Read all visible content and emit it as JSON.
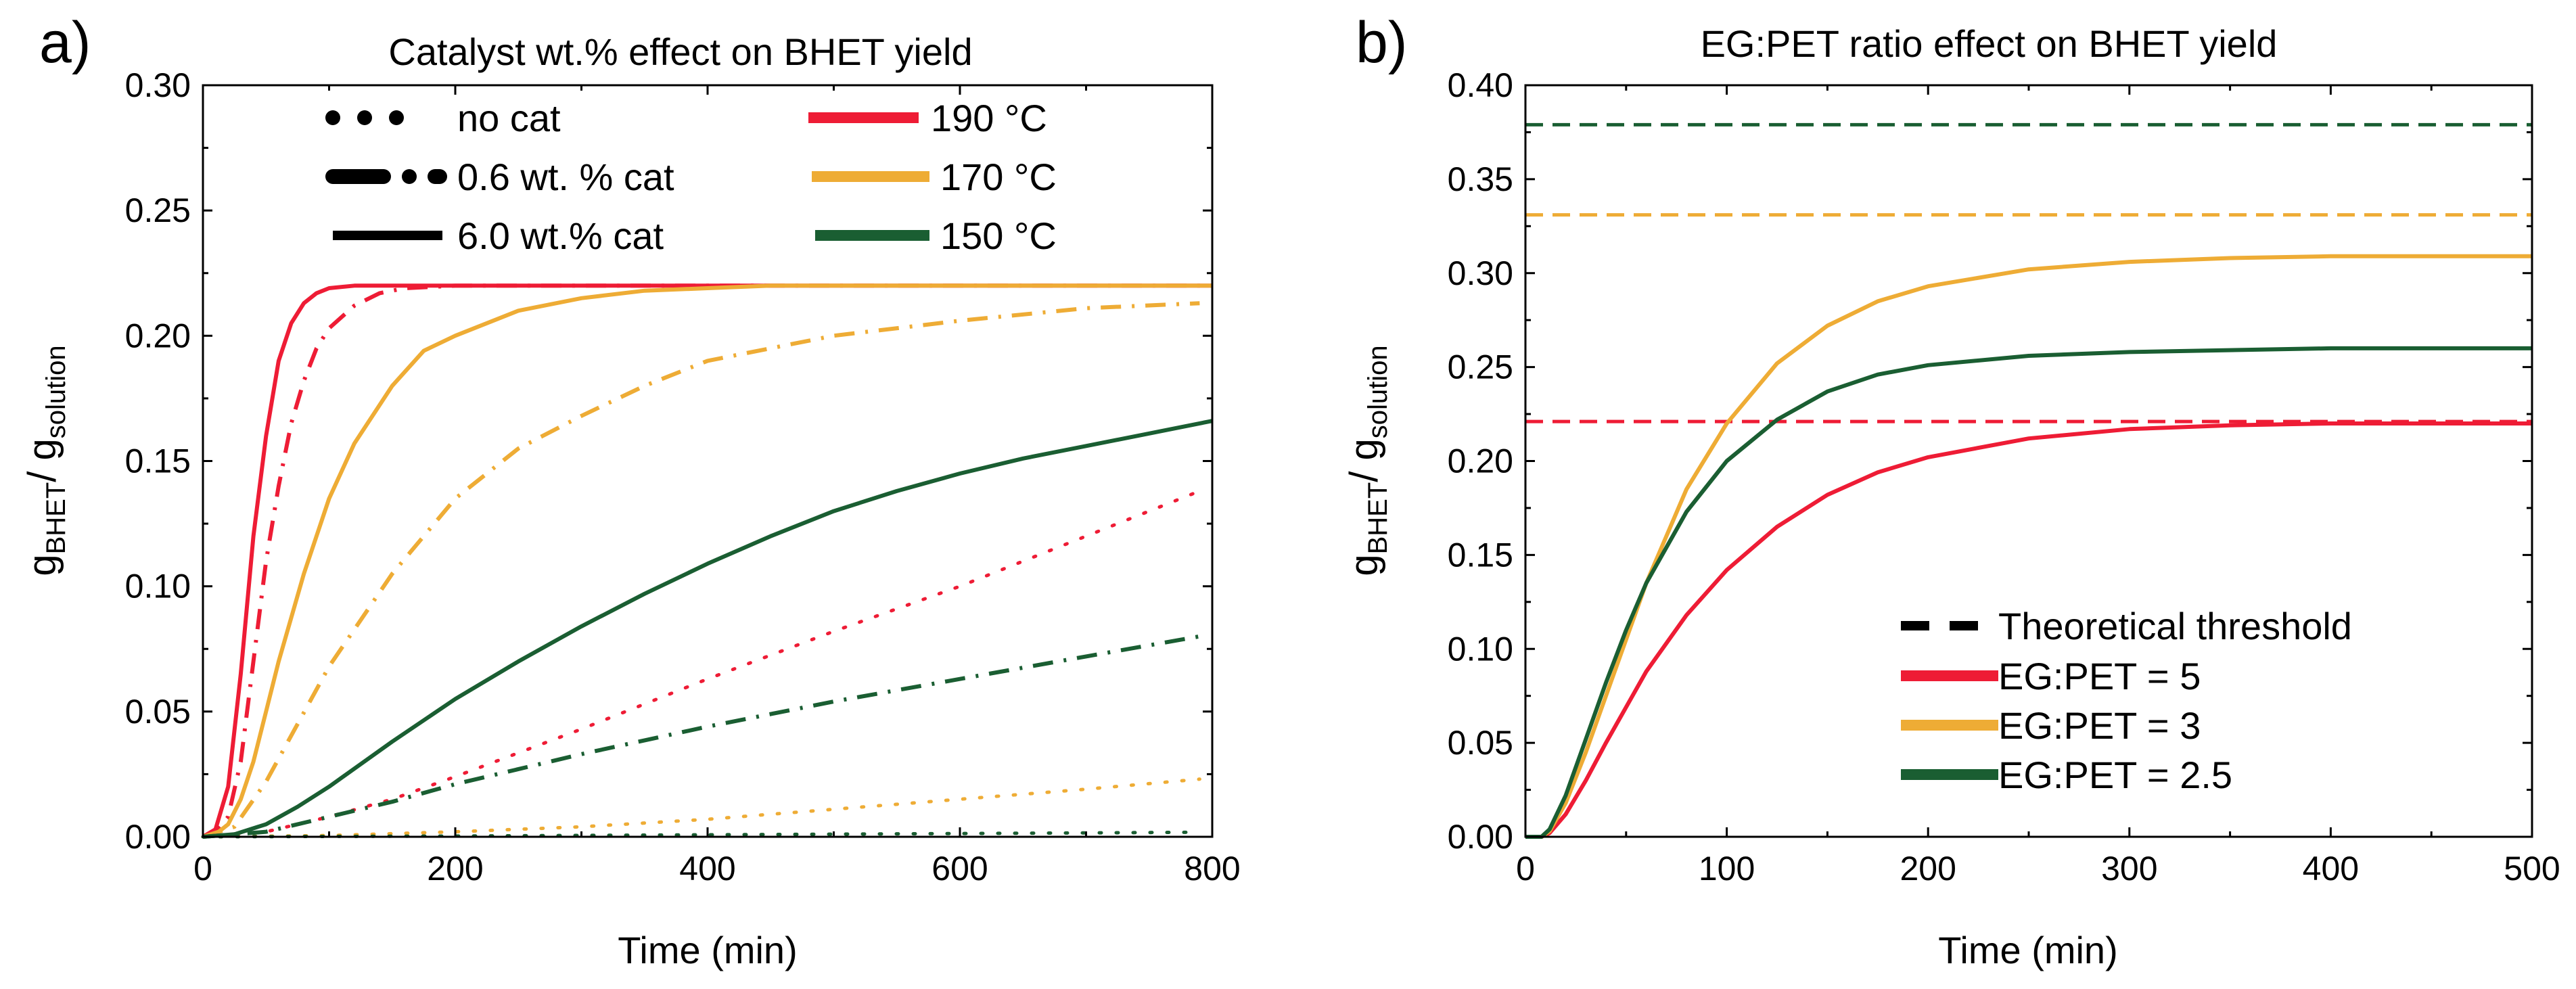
{
  "colors": {
    "red": "#ee1c35",
    "orange": "#eeac35",
    "green": "#1a5e32",
    "black": "#000000"
  },
  "chart_data": [
    {
      "panel_label": "a)",
      "type": "line",
      "title": "Catalyst wt.% effect on BHET yield",
      "xlabel": "Time (min)",
      "ylabel": {
        "main": "g",
        "sub": "BHET",
        "sep": "/ g",
        "sub2": "solution"
      },
      "xlim": [
        0,
        800
      ],
      "ylim": [
        0,
        0.3
      ],
      "xticks": [
        0,
        200,
        400,
        600,
        800
      ],
      "xtick_labels": [
        "0",
        "200",
        "400",
        "600",
        "800"
      ],
      "yticks": [
        0,
        0.05,
        0.1,
        0.15,
        0.2,
        0.25,
        0.3
      ],
      "ytick_labels": [
        "0.00",
        "0.05",
        "0.10",
        "0.15",
        "0.20",
        "0.25",
        "0.30"
      ],
      "legend": [
        {
          "label": "no cat",
          "color": "black",
          "style": "dot"
        },
        {
          "label": "0.6 wt. % cat",
          "color": "black",
          "style": "dashdot"
        },
        {
          "label": "6.0 wt.% cat",
          "color": "black",
          "style": "solid"
        },
        {
          "label": "190 °C",
          "color": "red",
          "style": "solid"
        },
        {
          "label": "170 °C",
          "color": "orange",
          "style": "solid"
        },
        {
          "label": "150 °C",
          "color": "green",
          "style": "solid"
        }
      ],
      "series": [
        {
          "name": "190 °C, 6.0 wt.% cat",
          "color": "red",
          "style": "solid",
          "x": [
            0,
            10,
            20,
            30,
            40,
            50,
            60,
            70,
            80,
            90,
            100,
            120,
            150,
            200,
            300,
            500,
            800
          ],
          "y": [
            0,
            0.003,
            0.02,
            0.065,
            0.12,
            0.16,
            0.19,
            0.205,
            0.213,
            0.217,
            0.219,
            0.22,
            0.22,
            0.22,
            0.22,
            0.22,
            0.22
          ]
        },
        {
          "name": "190 °C, 0.6 wt.% cat",
          "color": "red",
          "style": "dashdot",
          "x": [
            0,
            10,
            20,
            30,
            40,
            50,
            60,
            70,
            80,
            90,
            100,
            120,
            140,
            160,
            200,
            300,
            800
          ],
          "y": [
            0,
            0.002,
            0.008,
            0.03,
            0.07,
            0.11,
            0.14,
            0.165,
            0.182,
            0.195,
            0.203,
            0.212,
            0.217,
            0.219,
            0.22,
            0.22,
            0.22
          ]
        },
        {
          "name": "190 °C, no cat",
          "color": "red",
          "style": "dot",
          "x": [
            0,
            50,
            100,
            150,
            200,
            300,
            400,
            500,
            600,
            700,
            790
          ],
          "y": [
            0,
            0.002,
            0.008,
            0.015,
            0.024,
            0.043,
            0.063,
            0.082,
            0.1,
            0.12,
            0.138
          ]
        },
        {
          "name": "170 °C, 6.0 wt.% cat",
          "color": "orange",
          "style": "solid",
          "x": [
            0,
            10,
            20,
            30,
            40,
            50,
            60,
            80,
            100,
            120,
            150,
            175,
            200,
            250,
            300,
            350,
            400,
            450,
            500,
            800
          ],
          "y": [
            0,
            0.001,
            0.005,
            0.015,
            0.03,
            0.05,
            0.07,
            0.105,
            0.135,
            0.157,
            0.18,
            0.194,
            0.2,
            0.21,
            0.215,
            0.218,
            0.219,
            0.22,
            0.22,
            0.22
          ]
        },
        {
          "name": "170 °C, 0.6 wt.% cat",
          "color": "orange",
          "style": "dashdot",
          "x": [
            0,
            25,
            50,
            75,
            100,
            150,
            200,
            250,
            300,
            350,
            400,
            500,
            600,
            700,
            790
          ],
          "y": [
            0,
            0.004,
            0.022,
            0.045,
            0.068,
            0.105,
            0.135,
            0.155,
            0.168,
            0.18,
            0.19,
            0.2,
            0.206,
            0.211,
            0.213
          ]
        },
        {
          "name": "170 °C, no cat",
          "color": "orange",
          "style": "dot",
          "x": [
            0,
            100,
            200,
            300,
            400,
            500,
            600,
            700,
            790
          ],
          "y": [
            0,
            0.0005,
            0.002,
            0.004,
            0.007,
            0.011,
            0.015,
            0.019,
            0.023
          ]
        },
        {
          "name": "150 °C, 6.0 wt.% cat",
          "color": "green",
          "style": "solid",
          "x": [
            0,
            25,
            50,
            75,
            100,
            150,
            200,
            250,
            300,
            350,
            400,
            450,
            500,
            550,
            600,
            650,
            700,
            750,
            800
          ],
          "y": [
            0,
            0.001,
            0.005,
            0.012,
            0.02,
            0.038,
            0.055,
            0.07,
            0.084,
            0.097,
            0.109,
            0.12,
            0.13,
            0.138,
            0.145,
            0.151,
            0.156,
            0.161,
            0.166
          ]
        },
        {
          "name": "150 °C, 0.6 wt.% cat",
          "color": "green",
          "style": "dashdot",
          "x": [
            0,
            50,
            100,
            150,
            200,
            300,
            400,
            500,
            600,
            700,
            790
          ],
          "y": [
            0,
            0.002,
            0.008,
            0.014,
            0.021,
            0.033,
            0.044,
            0.054,
            0.063,
            0.072,
            0.08
          ]
        },
        {
          "name": "150 °C, no cat",
          "color": "green",
          "style": "dot",
          "x": [
            0,
            200,
            400,
            600,
            790
          ],
          "y": [
            0,
            0.0003,
            0.0008,
            0.0013,
            0.0018
          ]
        }
      ]
    },
    {
      "panel_label": "b)",
      "type": "line",
      "title": "EG:PET ratio effect on BHET yield",
      "xlabel": "Time (min)",
      "ylabel": {
        "main": "g",
        "sub": "BHET",
        "sep": "/ g",
        "sub2": "solution"
      },
      "xlim": [
        0,
        500
      ],
      "ylim": [
        0,
        0.4
      ],
      "xticks": [
        0,
        100,
        200,
        300,
        400,
        500
      ],
      "xtick_labels": [
        "0",
        "100",
        "200",
        "300",
        "400",
        "500"
      ],
      "yticks": [
        0,
        0.05,
        0.1,
        0.15,
        0.2,
        0.25,
        0.3,
        0.35,
        0.4
      ],
      "ytick_labels": [
        "0.00",
        "0.05",
        "0.10",
        "0.15",
        "0.20",
        "0.25",
        "0.30",
        "0.35",
        "0.40"
      ],
      "legend": [
        {
          "label": "Theoretical threshold",
          "color": "black",
          "style": "dash"
        },
        {
          "label": "EG:PET = 5",
          "color": "red",
          "style": "solid"
        },
        {
          "label": "EG:PET = 3",
          "color": "orange",
          "style": "solid"
        },
        {
          "label": "EG:PET = 2.5",
          "color": "green",
          "style": "solid"
        }
      ],
      "thresholds": [
        {
          "name": "EG:PET = 5 threshold",
          "color": "red",
          "value": 0.221
        },
        {
          "name": "EG:PET = 3 threshold",
          "color": "orange",
          "value": 0.331
        },
        {
          "name": "EG:PET = 2.5 threshold",
          "color": "green",
          "value": 0.379
        }
      ],
      "series": [
        {
          "name": "EG:PET = 5",
          "color": "red",
          "style": "solid",
          "x": [
            0,
            8,
            12,
            20,
            30,
            40,
            60,
            80,
            100,
            125,
            150,
            175,
            200,
            250,
            300,
            350,
            400,
            450,
            500
          ],
          "y": [
            0,
            0,
            0.002,
            0.012,
            0.03,
            0.05,
            0.088,
            0.118,
            0.142,
            0.165,
            0.182,
            0.194,
            0.202,
            0.212,
            0.217,
            0.219,
            0.22,
            0.22,
            0.22
          ]
        },
        {
          "name": "EG:PET = 3",
          "color": "orange",
          "style": "solid",
          "x": [
            0,
            8,
            12,
            20,
            30,
            40,
            50,
            60,
            80,
            100,
            125,
            150,
            175,
            200,
            250,
            300,
            350,
            400,
            450,
            500
          ],
          "y": [
            0,
            0,
            0.003,
            0.018,
            0.045,
            0.075,
            0.105,
            0.135,
            0.185,
            0.22,
            0.252,
            0.272,
            0.285,
            0.293,
            0.302,
            0.306,
            0.308,
            0.309,
            0.309,
            0.309
          ]
        },
        {
          "name": "EG:PET = 2.5",
          "color": "green",
          "style": "solid",
          "x": [
            0,
            8,
            12,
            20,
            30,
            40,
            50,
            60,
            80,
            100,
            125,
            150,
            175,
            200,
            250,
            300,
            350,
            400,
            450,
            500
          ],
          "y": [
            0,
            0,
            0.004,
            0.022,
            0.052,
            0.082,
            0.11,
            0.135,
            0.173,
            0.2,
            0.222,
            0.237,
            0.246,
            0.251,
            0.256,
            0.258,
            0.259,
            0.26,
            0.26,
            0.26
          ]
        }
      ]
    }
  ]
}
